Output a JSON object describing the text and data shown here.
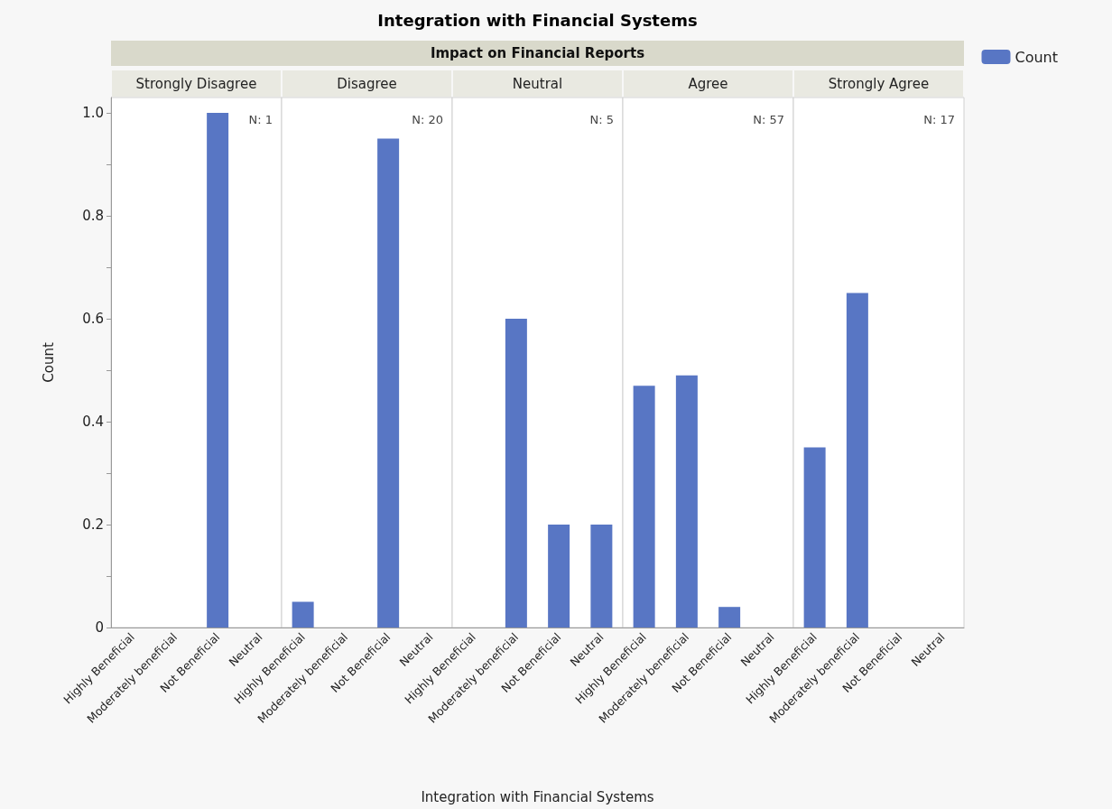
{
  "chart_data": [
    {
      "type": "bar",
      "title": "Strongly Disagree",
      "ylabel": "Count",
      "annotations": [
        "N: 1",
        "Integration with Financial Systems",
        "Impact on Financial Reports"
      ],
      "categories": [
        "Highly Beneficial",
        "Moderately beneficial",
        "Not Beneficial",
        "Neutral"
      ],
      "values": [
        0,
        0,
        1,
        0
      ],
      "color": "#5876c4",
      "ylim": [
        0,
        1.03
      ],
      "yticks": [
        0,
        {
          "value": 0.1,
          "label": null
        },
        0.2,
        {
          "value": 0.3,
          "label": null
        },
        0.4,
        {
          "value": 0.5,
          "label": null
        },
        0.6,
        {
          "value": 0.7,
          "label": null
        },
        0.8,
        {
          "value": 0.9,
          "label": null
        },
        {
          "value": 1,
          "label": "1.0"
        }
      ],
      "grid": false
    },
    {
      "type": "bar",
      "title": "Disagree",
      "annotations": [
        "N: 20"
      ],
      "categories": [
        "Highly Beneficial",
        "Moderately beneficial",
        "Not Beneficial",
        "Neutral"
      ],
      "values": [
        0.05,
        0,
        0.95,
        0
      ],
      "color": "#5876c4",
      "ylim": [
        0,
        1.03
      ],
      "tick_labels": "x",
      "grid": false
    },
    {
      "type": "bar",
      "title": "Neutral",
      "xlabel": "Integration with Financial Systems",
      "annotations": [
        "N: 5"
      ],
      "categories": [
        "Highly Beneficial",
        "Moderately beneficial",
        "Not Beneficial",
        "Neutral"
      ],
      "values": [
        0,
        0.6,
        0.2,
        0.2
      ],
      "color": "#5876c4",
      "ylim": [
        0,
        1.03
      ],
      "tick_labels": "x",
      "grid": false
    },
    {
      "type": "bar",
      "title": "Agree",
      "annotations": [
        "N: 57"
      ],
      "categories": [
        "Highly Beneficial",
        "Moderately beneficial",
        "Not Beneficial",
        "Neutral"
      ],
      "values": [
        0.47,
        0.49,
        0.04,
        0
      ],
      "color": "#5876c4",
      "ylim": [
        0,
        1.03
      ],
      "tick_labels": "x",
      "grid": false
    },
    {
      "type": "bar",
      "title": "Strongly Agree",
      "annotations": [
        "N: 17"
      ],
      "categories": [
        "Highly Beneficial",
        "Moderately beneficial",
        "Not Beneficial",
        "Neutral"
      ],
      "series": [
        {
          "name": "Count",
          "color": "#5876c4",
          "values": [
            0.35,
            0.65,
            0,
            0
          ]
        }
      ],
      "ylim": [
        0,
        1.03
      ],
      "tick_labels": "x",
      "grid": false,
      "legend": "top right"
    }
  ]
}
